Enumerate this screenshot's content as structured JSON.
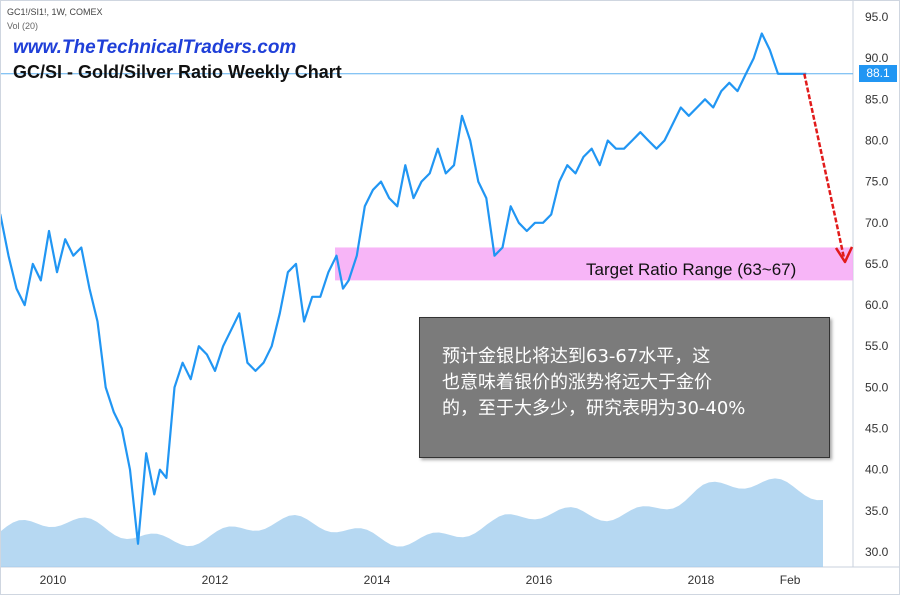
{
  "header": {
    "symbol_line": "GC1!/SI1!, 1W, COMEX",
    "volume_line": "Vol (20)",
    "website": "www.TheTechnicalTraders.com",
    "title": "GC/SI - Gold/Silver Ratio Weekly Chart"
  },
  "zone_label": "Target Ratio Range (63~67)",
  "note": "预计金银比将达到63-67水平，这\n也意味着银价的涨势将远大于金价\n的，至于大多少，研究表明为30-40%",
  "last_price_label": "88.1",
  "colors": {
    "line": "#2196f3",
    "volume_area": "#9ecbee",
    "zone": "#f6a8f6",
    "arrow": "#e11b1b",
    "price_tag": "#2196f3",
    "note_bg": "#7b7b7b"
  },
  "chart_data": {
    "type": "line",
    "title": "GC/SI - Gold/Silver Ratio Weekly Chart",
    "xlabel": "",
    "ylabel": "",
    "x_tick_labels": [
      "2010",
      "2012",
      "2014",
      "2016",
      "2018",
      "Feb"
    ],
    "y_tick_labels": [
      "30.0",
      "35.0",
      "40.0",
      "45.0",
      "50.0",
      "55.0",
      "60.0",
      "65.0",
      "70.0",
      "75.0",
      "80.0",
      "85.0",
      "90.0",
      "95.0"
    ],
    "ylim": [
      29,
      96
    ],
    "grid": false,
    "series": [
      {
        "x": [
          2009.25,
          2009.35,
          2009.45,
          2009.55,
          2009.65,
          2009.75,
          2009.85,
          2009.95,
          2010.05,
          2010.15,
          2010.25,
          2010.35,
          2010.45,
          2010.55,
          2010.65,
          2010.75,
          2010.85,
          2010.95,
          2011.05,
          2011.15,
          2011.25,
          2011.32,
          2011.4,
          2011.5,
          2011.6,
          2011.7,
          2011.8,
          2011.9,
          2012.0,
          2012.1,
          2012.2,
          2012.3,
          2012.4,
          2012.5,
          2012.6,
          2012.7,
          2012.8,
          2012.9,
          2013.0,
          2013.1,
          2013.2,
          2013.3,
          2013.4,
          2013.5,
          2013.58,
          2013.65,
          2013.75,
          2013.85,
          2013.95,
          2014.05,
          2014.15,
          2014.25,
          2014.35,
          2014.45,
          2014.55,
          2014.65,
          2014.75,
          2014.85,
          2014.95,
          2015.05,
          2015.15,
          2015.25,
          2015.35,
          2015.45,
          2015.55,
          2015.65,
          2015.75,
          2015.85,
          2015.95,
          2016.05,
          2016.15,
          2016.25,
          2016.35,
          2016.45,
          2016.55,
          2016.65,
          2016.75,
          2016.85,
          2016.95,
          2017.05,
          2017.15,
          2017.25,
          2017.35,
          2017.45,
          2017.55,
          2017.65,
          2017.75,
          2017.85,
          2017.95,
          2018.05,
          2018.15,
          2018.25,
          2018.35,
          2018.45,
          2018.55,
          2018.65,
          2018.75,
          2018.85,
          2018.95,
          2019.05,
          2019.15,
          2019.25,
          2019.3
        ],
        "values": [
          62,
          71,
          66,
          62,
          60,
          65,
          63,
          69,
          64,
          68,
          66,
          67,
          62,
          58,
          50,
          47,
          45,
          40,
          31,
          42,
          37,
          40,
          39,
          50,
          53,
          51,
          55,
          54,
          52,
          55,
          57,
          59,
          53,
          52,
          53,
          55,
          59,
          64,
          65,
          58,
          61,
          61,
          64,
          66,
          62,
          63,
          66,
          72,
          74,
          75,
          73,
          72,
          77,
          73,
          75,
          76,
          79,
          76,
          77,
          83,
          80,
          75,
          73,
          66,
          67,
          72,
          70,
          69,
          70,
          70,
          71,
          75,
          77,
          76,
          78,
          79,
          77,
          80,
          79,
          79,
          80,
          81,
          80,
          79,
          80,
          82,
          84,
          83,
          84,
          85,
          84,
          86,
          87,
          86,
          88,
          90,
          93,
          91,
          88.1,
          88.1,
          88.1,
          88.1,
          88.1
        ]
      }
    ],
    "annotations": [
      {
        "text": "Target Ratio Range (63~67)",
        "y_range": [
          63,
          67
        ]
      }
    ],
    "last_value": 88.1,
    "projection_target": 65
  }
}
